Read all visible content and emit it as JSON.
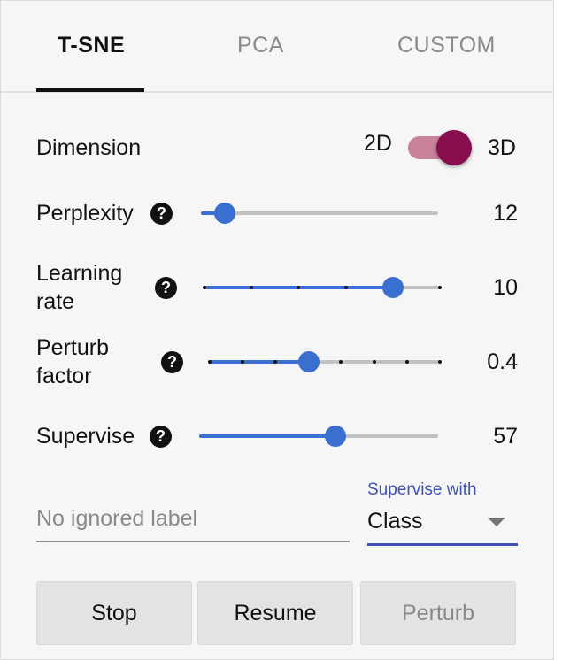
{
  "tabs": [
    {
      "label": "T-SNE",
      "active": true
    },
    {
      "label": "PCA",
      "active": false
    },
    {
      "label": "CUSTOM",
      "active": false
    }
  ],
  "dimension": {
    "label": "Dimension",
    "left_option": "2D",
    "right_option": "3D",
    "selected": "3D",
    "track_color": "#c9809b",
    "thumb_color": "#880e4f"
  },
  "help_glyph": "?",
  "sliders": {
    "perplexity": {
      "label": "Perplexity",
      "value": "12",
      "fraction": 0.1
    },
    "learning_rate": {
      "label_line1": "Learning",
      "label_line2": "rate",
      "value": "10",
      "fraction": 0.8
    },
    "perturb_factor": {
      "label_line1": "Perturb",
      "label_line2": "factor",
      "value": "0.4",
      "fraction": 0.43
    },
    "supervise": {
      "label": "Supervise",
      "value": "57",
      "fraction": 0.57
    }
  },
  "ignored_label": {
    "placeholder": "No ignored label",
    "value": ""
  },
  "supervise_with": {
    "label": "Supervise with",
    "selected": "Class"
  },
  "buttons": {
    "stop": "Stop",
    "resume": "Resume",
    "perturb": "Perturb"
  },
  "colors": {
    "accent": "#3a6fd0",
    "select_accent": "#3f51b5"
  }
}
